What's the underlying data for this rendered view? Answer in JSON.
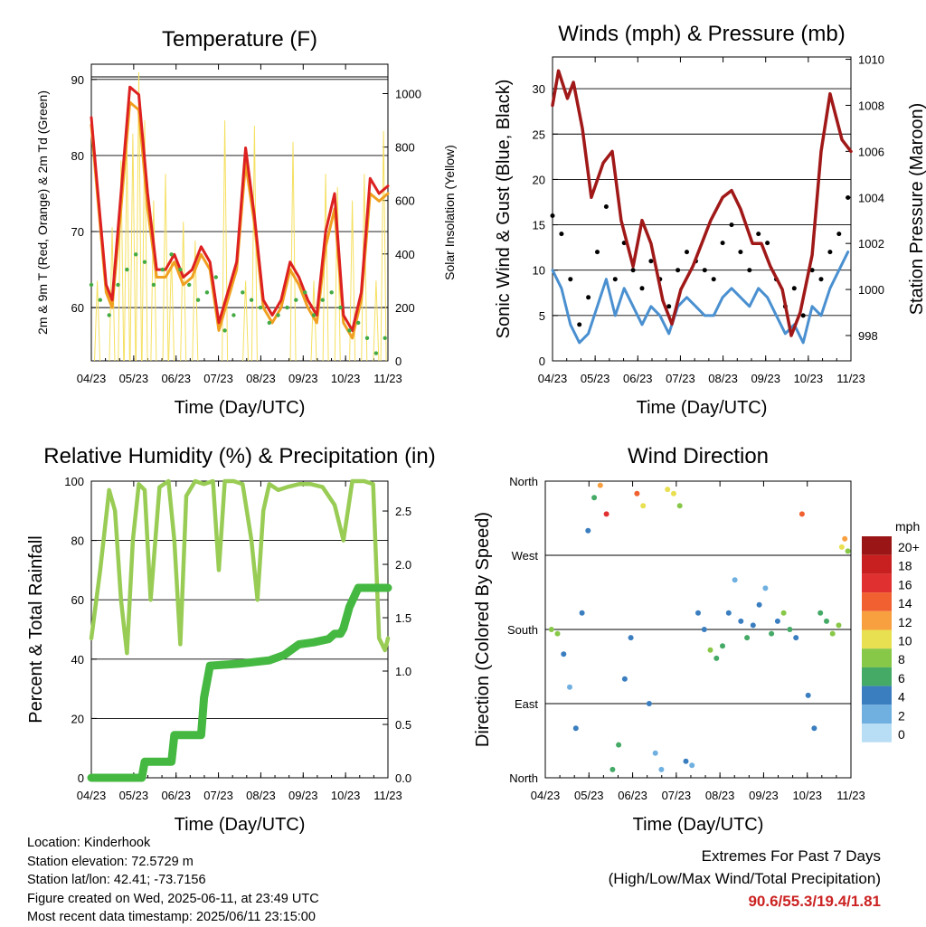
{
  "chart_data": [
    {
      "type": "line",
      "title": "Temperature (F)",
      "xlabel": "Time (Day/UTC)",
      "ylabel": "2m & 9m T (Red, Orange) & 2m Td (Green)",
      "ylabel_right": "Solar Insolation (Yellow)",
      "x_ticks": [
        "04/23",
        "05/23",
        "06/23",
        "07/23",
        "08/23",
        "09/23",
        "10/23",
        "11/23"
      ],
      "ylim": [
        53,
        92
      ],
      "y_ticks": [
        60,
        70,
        80,
        90
      ],
      "y2lim": [
        0,
        1110
      ],
      "y2_ticks": [
        0,
        200,
        400,
        600,
        800,
        1000
      ],
      "grid": "horizontal",
      "series": [
        {
          "color": "#dd2020",
          "x": [
            0,
            0.02,
            0.05,
            0.07,
            0.1,
            0.13,
            0.16,
            0.19,
            0.22,
            0.25,
            0.28,
            0.31,
            0.34,
            0.37,
            0.4,
            0.43,
            0.46,
            0.49,
            0.52,
            0.55,
            0.58,
            0.61,
            0.64,
            0.67,
            0.7,
            0.73,
            0.76,
            0.79,
            0.82,
            0.85,
            0.88,
            0.91,
            0.94,
            0.97,
            1.0
          ],
          "values": [
            85,
            76,
            63,
            61,
            75,
            89,
            88,
            75,
            65,
            65,
            67,
            64,
            65,
            68,
            66,
            58,
            62,
            66,
            81,
            72,
            61,
            59,
            61,
            66,
            64,
            61,
            59,
            70,
            75,
            59,
            57,
            62,
            77,
            75,
            76
          ]
        },
        {
          "color": "#f0a020",
          "x": [
            0,
            0.02,
            0.05,
            0.07,
            0.1,
            0.13,
            0.16,
            0.19,
            0.22,
            0.25,
            0.28,
            0.31,
            0.34,
            0.37,
            0.4,
            0.43,
            0.46,
            0.49,
            0.52,
            0.55,
            0.58,
            0.61,
            0.64,
            0.67,
            0.7,
            0.73,
            0.76,
            0.79,
            0.82,
            0.85,
            0.88,
            0.91,
            0.94,
            0.97,
            1.0
          ],
          "values": [
            84,
            75,
            62,
            60,
            73,
            87,
            86,
            73,
            64,
            64,
            66,
            63,
            64,
            67,
            65,
            57,
            61,
            65,
            79,
            71,
            60,
            58,
            60,
            65,
            63,
            60,
            58,
            68,
            73,
            58,
            56,
            61,
            75,
            74,
            75
          ]
        },
        {
          "color": "#44aa44",
          "x": [
            0,
            0.03,
            0.06,
            0.09,
            0.12,
            0.15,
            0.18,
            0.21,
            0.24,
            0.27,
            0.3,
            0.33,
            0.36,
            0.39,
            0.42,
            0.45,
            0.48,
            0.51,
            0.54,
            0.57,
            0.6,
            0.63,
            0.66,
            0.69,
            0.72,
            0.75,
            0.78,
            0.81,
            0.84,
            0.87,
            0.9,
            0.93,
            0.96,
            0.99
          ],
          "values": [
            63,
            61,
            59,
            63,
            65,
            67,
            66,
            63,
            65,
            67,
            65,
            63,
            61,
            62,
            64,
            57,
            59,
            62,
            61,
            60,
            58,
            59,
            60,
            61,
            62,
            59,
            61,
            62,
            60,
            57,
            58,
            56,
            54,
            56
          ]
        },
        {
          "color": "#f5e060",
          "x": [
            0.02,
            0.07,
            0.1,
            0.12,
            0.14,
            0.16,
            0.18,
            0.21,
            0.25,
            0.27,
            0.31,
            0.35,
            0.45,
            0.52,
            0.55,
            0.68,
            0.75,
            0.79,
            0.83,
            0.88,
            0.92,
            0.96,
            0.985
          ],
          "values": [
            300,
            500,
            750,
            800,
            850,
            1080,
            900,
            600,
            700,
            400,
            520,
            450,
            900,
            300,
            880,
            820,
            300,
            700,
            650,
            600,
            700,
            300,
            860
          ]
        }
      ]
    },
    {
      "type": "line",
      "title": "Winds (mph) & Pressure (mb)",
      "xlabel": "Time (Day/UTC)",
      "ylabel": "Sonic Wind & Gust (Blue, Black)",
      "ylabel_right": "Station Pressure (Maroon)",
      "x_ticks": [
        "04/23",
        "05/23",
        "06/23",
        "07/23",
        "08/23",
        "09/23",
        "10/23",
        "11/23"
      ],
      "ylim": [
        0,
        33.5
      ],
      "y_ticks": [
        0,
        5,
        10,
        15,
        20,
        25,
        30
      ],
      "y2lim": [
        996.9,
        1010.1
      ],
      "y2_ticks": [
        998,
        1000,
        1002,
        1004,
        1006,
        1008,
        1010
      ],
      "grid": "horizontal",
      "series": [
        {
          "color": "#000000",
          "x": [
            0,
            0.03,
            0.06,
            0.09,
            0.12,
            0.15,
            0.18,
            0.21,
            0.24,
            0.27,
            0.3,
            0.33,
            0.36,
            0.39,
            0.42,
            0.45,
            0.48,
            0.51,
            0.54,
            0.57,
            0.6,
            0.63,
            0.66,
            0.69,
            0.72,
            0.75,
            0.78,
            0.81,
            0.84,
            0.87,
            0.9,
            0.93,
            0.96,
            0.99
          ],
          "values": [
            16,
            14,
            9,
            4,
            7,
            12,
            17,
            9,
            13,
            10,
            8,
            11,
            9,
            6,
            10,
            12,
            11,
            10,
            9,
            13,
            15,
            12,
            10,
            14,
            13,
            9,
            6,
            8,
            5,
            10,
            9,
            12,
            14,
            18
          ]
        },
        {
          "color": "#4a90d0",
          "x": [
            0,
            0.03,
            0.06,
            0.09,
            0.12,
            0.15,
            0.18,
            0.21,
            0.24,
            0.27,
            0.3,
            0.33,
            0.36,
            0.39,
            0.42,
            0.45,
            0.48,
            0.51,
            0.54,
            0.57,
            0.6,
            0.63,
            0.66,
            0.69,
            0.72,
            0.75,
            0.78,
            0.81,
            0.84,
            0.87,
            0.9,
            0.93,
            0.96,
            0.99
          ],
          "values": [
            10,
            8,
            4,
            2,
            3,
            6,
            9,
            5,
            8,
            6,
            4,
            6,
            5,
            3,
            6,
            7,
            6,
            5,
            5,
            7,
            8,
            7,
            6,
            8,
            7,
            5,
            3,
            4,
            2,
            6,
            5,
            8,
            10,
            12
          ]
        },
        {
          "color": "#a01818",
          "x": [
            0,
            0.02,
            0.05,
            0.07,
            0.1,
            0.13,
            0.17,
            0.2,
            0.23,
            0.27,
            0.3,
            0.33,
            0.37,
            0.4,
            0.43,
            0.47,
            0.5,
            0.53,
            0.57,
            0.6,
            0.63,
            0.67,
            0.7,
            0.73,
            0.77,
            0.8,
            0.83,
            0.87,
            0.9,
            0.93,
            0.97,
            1.0
          ],
          "values": [
            1008,
            1009.5,
            1008.3,
            1009,
            1007,
            1004,
            1005.5,
            1006,
            1003,
            1001,
            1003,
            1002,
            999.5,
            998.5,
            1000,
            1001,
            1002,
            1003,
            1004,
            1004.3,
            1003.5,
            1002,
            1002,
            1001,
            1000,
            998,
            999,
            1001.5,
            1006,
            1008.5,
            1006.5,
            1006
          ]
        }
      ]
    },
    {
      "type": "line",
      "title": "Relative Humidity (%) & Precipitation (in)",
      "xlabel": "Time (Day/UTC)",
      "ylabel": "Percent & Total Rainfall",
      "x_ticks": [
        "04/23",
        "05/23",
        "06/23",
        "07/23",
        "08/23",
        "09/23",
        "10/23",
        "11/23"
      ],
      "ylim": [
        0,
        100
      ],
      "y_ticks": [
        0,
        20,
        40,
        60,
        80,
        100
      ],
      "y2lim": [
        0,
        2.78
      ],
      "y2_ticks": [
        0.0,
        0.5,
        1.0,
        1.5,
        2.0,
        2.5
      ],
      "grid": "horizontal",
      "series": [
        {
          "color": "#99cc55",
          "x": [
            0,
            0.03,
            0.06,
            0.08,
            0.1,
            0.12,
            0.14,
            0.16,
            0.18,
            0.2,
            0.23,
            0.26,
            0.28,
            0.3,
            0.32,
            0.35,
            0.38,
            0.41,
            0.43,
            0.45,
            0.48,
            0.51,
            0.54,
            0.56,
            0.58,
            0.6,
            0.63,
            0.66,
            0.7,
            0.74,
            0.78,
            0.82,
            0.85,
            0.88,
            0.9,
            0.92,
            0.95,
            0.97,
            0.99,
            1.0
          ],
          "values": [
            47,
            70,
            97,
            90,
            60,
            42,
            80,
            99,
            97,
            60,
            98,
            100,
            80,
            45,
            95,
            100,
            99,
            100,
            70,
            100,
            100,
            99,
            80,
            60,
            90,
            99,
            97,
            98,
            99,
            99,
            98,
            92,
            80,
            100,
            100,
            100,
            99,
            47,
            43,
            47
          ]
        },
        {
          "color": "#44b840",
          "x": [
            0,
            0.1,
            0.17,
            0.18,
            0.27,
            0.28,
            0.37,
            0.38,
            0.39,
            0.4,
            0.5,
            0.6,
            0.65,
            0.7,
            0.75,
            0.8,
            0.82,
            0.84,
            0.85,
            0.87,
            0.9,
            0.97,
            1.0
          ],
          "values": [
            0,
            0,
            0,
            0.15,
            0.15,
            0.4,
            0.4,
            0.75,
            0.9,
            1.05,
            1.07,
            1.1,
            1.15,
            1.25,
            1.27,
            1.3,
            1.35,
            1.35,
            1.4,
            1.6,
            1.78,
            1.78,
            1.78
          ]
        }
      ]
    },
    {
      "type": "scatter",
      "title": "Wind Direction",
      "xlabel": "Time (Day/UTC)",
      "ylabel": "Direction (Colored By Speed)",
      "x_ticks": [
        "04/23",
        "05/23",
        "06/23",
        "07/23",
        "08/23",
        "09/23",
        "10/23",
        "11/23"
      ],
      "y_ticks": [
        "North",
        "East",
        "South",
        "West",
        "North"
      ],
      "ylim": [
        0,
        360
      ],
      "legend_title": "mph",
      "legend_labels": [
        "20+",
        "18",
        "16",
        "14",
        "12",
        "10",
        "8",
        "6",
        "4",
        "2",
        "0"
      ],
      "legend_colors": [
        "#9a1515",
        "#c82020",
        "#e03030",
        "#f06030",
        "#f8a040",
        "#e8e050",
        "#88c848",
        "#44aa66",
        "#3a7ec0",
        "#70b0e0",
        "#b8def5"
      ],
      "grid": "horizontal",
      "points": [
        {
          "x": 0.02,
          "dir": 180,
          "spd": 8
        },
        {
          "x": 0.04,
          "dir": 175,
          "spd": 7
        },
        {
          "x": 0.06,
          "dir": 150,
          "spd": 3
        },
        {
          "x": 0.08,
          "dir": 110,
          "spd": 2
        },
        {
          "x": 0.1,
          "dir": 60,
          "spd": 3
        },
        {
          "x": 0.12,
          "dir": 200,
          "spd": 4
        },
        {
          "x": 0.14,
          "dir": 300,
          "spd": 4
        },
        {
          "x": 0.16,
          "dir": 340,
          "spd": 5
        },
        {
          "x": 0.18,
          "dir": 355,
          "spd": 12
        },
        {
          "x": 0.2,
          "dir": 320,
          "spd": 16
        },
        {
          "x": 0.22,
          "dir": 10,
          "spd": 6
        },
        {
          "x": 0.24,
          "dir": 40,
          "spd": 5
        },
        {
          "x": 0.26,
          "dir": 120,
          "spd": 4
        },
        {
          "x": 0.28,
          "dir": 170,
          "spd": 3
        },
        {
          "x": 0.3,
          "dir": 345,
          "spd": 14
        },
        {
          "x": 0.32,
          "dir": 330,
          "spd": 10
        },
        {
          "x": 0.34,
          "dir": 90,
          "spd": 3
        },
        {
          "x": 0.36,
          "dir": 30,
          "spd": 2
        },
        {
          "x": 0.38,
          "dir": 10,
          "spd": 1
        },
        {
          "x": 0.4,
          "dir": 350,
          "spd": 9
        },
        {
          "x": 0.42,
          "dir": 345,
          "spd": 10
        },
        {
          "x": 0.44,
          "dir": 330,
          "spd": 7
        },
        {
          "x": 0.46,
          "dir": 20,
          "spd": 3
        },
        {
          "x": 0.48,
          "dir": 15,
          "spd": 2
        },
        {
          "x": 0.5,
          "dir": 200,
          "spd": 3
        },
        {
          "x": 0.52,
          "dir": 180,
          "spd": 4
        },
        {
          "x": 0.54,
          "dir": 155,
          "spd": 7
        },
        {
          "x": 0.56,
          "dir": 145,
          "spd": 6
        },
        {
          "x": 0.58,
          "dir": 160,
          "spd": 5
        },
        {
          "x": 0.6,
          "dir": 200,
          "spd": 3
        },
        {
          "x": 0.62,
          "dir": 240,
          "spd": 2
        },
        {
          "x": 0.64,
          "dir": 190,
          "spd": 4
        },
        {
          "x": 0.66,
          "dir": 170,
          "spd": 5
        },
        {
          "x": 0.68,
          "dir": 185,
          "spd": 3
        },
        {
          "x": 0.7,
          "dir": 210,
          "spd": 4
        },
        {
          "x": 0.72,
          "dir": 230,
          "spd": 2
        },
        {
          "x": 0.74,
          "dir": 175,
          "spd": 6
        },
        {
          "x": 0.76,
          "dir": 190,
          "spd": 4
        },
        {
          "x": 0.78,
          "dir": 200,
          "spd": 7
        },
        {
          "x": 0.8,
          "dir": 180,
          "spd": 5
        },
        {
          "x": 0.82,
          "dir": 170,
          "spd": 3
        },
        {
          "x": 0.84,
          "dir": 320,
          "spd": 14
        },
        {
          "x": 0.86,
          "dir": 100,
          "spd": 4
        },
        {
          "x": 0.88,
          "dir": 60,
          "spd": 3
        },
        {
          "x": 0.9,
          "dir": 200,
          "spd": 5
        },
        {
          "x": 0.92,
          "dir": 190,
          "spd": 6
        },
        {
          "x": 0.94,
          "dir": 175,
          "spd": 8
        },
        {
          "x": 0.96,
          "dir": 185,
          "spd": 7
        },
        {
          "x": 0.97,
          "dir": 280,
          "spd": 9
        },
        {
          "x": 0.98,
          "dir": 290,
          "spd": 11
        },
        {
          "x": 0.99,
          "dir": 275,
          "spd": 8
        }
      ]
    }
  ],
  "info": {
    "location": "Location: Kinderhook",
    "elevation": "Station elevation: 72.5729 m",
    "latlon": "Station lat/lon: 42.41; -73.7156",
    "created": "Figure created on Wed, 2025-06-11, at 23:49 UTC",
    "recent": "Most recent data timestamp: 2025/06/11 23:15:00"
  },
  "extremes": {
    "heading": "Extremes For Past 7 Days",
    "subheading": "(High/Low/Max Wind/Total Precipitation)",
    "values": "90.6/55.3/19.4/1.81"
  }
}
